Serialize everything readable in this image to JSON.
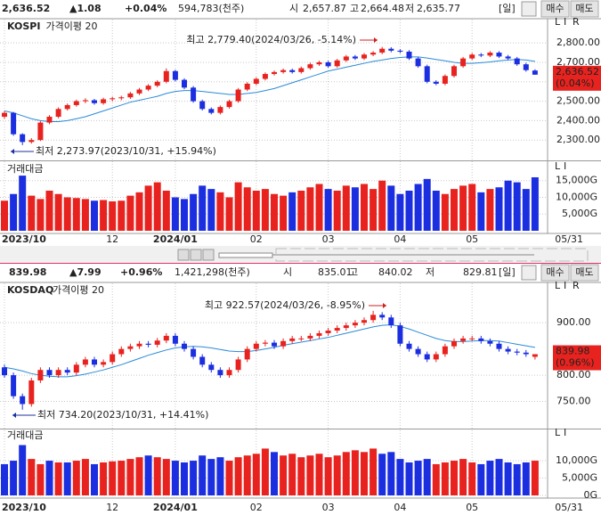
{
  "panels": [
    {
      "header": [
        {
          "text": "2,636.52",
          "color": "#222"
        },
        {
          "text": "▲1.08",
          "color": "#e0201c"
        },
        {
          "text": "+0.04%",
          "color": "#e0201c"
        },
        {
          "text": "594,783(천주)",
          "color": "#222"
        },
        {
          "text": "시",
          "color": "#222"
        },
        {
          "text": "2,657.87",
          "color": "#e0201c"
        },
        {
          "text": "고",
          "color": "#222"
        },
        {
          "text": "2,664.48",
          "color": "#e0201c"
        },
        {
          "text": "저",
          "color": "#222"
        },
        {
          "text": "2,635.77",
          "color": "#e0201c"
        },
        {
          "text": "[일]",
          "color": "#222"
        }
      ],
      "buttons": [
        "매수",
        "매도"
      ],
      "name": "KOSPI",
      "ma_label": "가격이평 20",
      "axis_buttons": [
        "L",
        "I",
        "R"
      ],
      "high_note": "최고 2,779.40(2024/03/26, -5.14%)",
      "low_note": "최저 2,273.97(2023/10/31, +15.94%)",
      "ylim": [
        2200,
        2920
      ],
      "yticks": [
        {
          "value": 2300,
          "label": "2,300.00"
        },
        {
          "value": 2400,
          "label": "2,400.00"
        },
        {
          "value": 2500,
          "label": "2,500.00"
        },
        {
          "value": 2600,
          "label": "2,600.00"
        },
        {
          "value": 2700,
          "label": "2,700.00"
        },
        {
          "value": 2800,
          "label": "2,800.00"
        }
      ],
      "up_color": "#e8221e",
      "down_color": "#1c2fe0",
      "ma_color": "#2a8ad8",
      "candles": [
        [
          2420,
          2450,
          2410,
          2440
        ],
        [
          2440,
          2445,
          2322,
          2330
        ],
        [
          2330,
          2335,
          2273.97,
          2290
        ],
        [
          2290,
          2310,
          2282,
          2300
        ],
        [
          2300,
          2398,
          2295,
          2390
        ],
        [
          2390,
          2428,
          2382,
          2420
        ],
        [
          2420,
          2468,
          2412,
          2460
        ],
        [
          2460,
          2488,
          2452,
          2480
        ],
        [
          2480,
          2508,
          2472,
          2500
        ],
        [
          2500,
          2515,
          2490,
          2505
        ],
        [
          2505,
          2512,
          2482,
          2490
        ],
        [
          2490,
          2518,
          2482,
          2510
        ],
        [
          2510,
          2523,
          2500,
          2515
        ],
        [
          2515,
          2528,
          2505,
          2520
        ],
        [
          2520,
          2548,
          2512,
          2540
        ],
        [
          2540,
          2568,
          2532,
          2560
        ],
        [
          2560,
          2588,
          2552,
          2580
        ],
        [
          2580,
          2608,
          2572,
          2600
        ],
        [
          2600,
          2669,
          2592,
          2655
        ],
        [
          2655,
          2662,
          2602,
          2610
        ],
        [
          2610,
          2618,
          2562,
          2570
        ],
        [
          2570,
          2578,
          2492,
          2500
        ],
        [
          2500,
          2508,
          2452,
          2460
        ],
        [
          2460,
          2468,
          2432,
          2440
        ],
        [
          2440,
          2478,
          2432,
          2470
        ],
        [
          2470,
          2508,
          2462,
          2500
        ],
        [
          2500,
          2568,
          2492,
          2560
        ],
        [
          2560,
          2598,
          2552,
          2590
        ],
        [
          2590,
          2623,
          2582,
          2615
        ],
        [
          2615,
          2648,
          2607,
          2640
        ],
        [
          2640,
          2658,
          2632,
          2650
        ],
        [
          2650,
          2668,
          2642,
          2660
        ],
        [
          2660,
          2668,
          2642,
          2650
        ],
        [
          2650,
          2678,
          2642,
          2670
        ],
        [
          2670,
          2698,
          2662,
          2690
        ],
        [
          2690,
          2708,
          2682,
          2700
        ],
        [
          2700,
          2708,
          2672,
          2680
        ],
        [
          2680,
          2718,
          2672,
          2710
        ],
        [
          2710,
          2738,
          2702,
          2730
        ],
        [
          2730,
          2738,
          2712,
          2720
        ],
        [
          2720,
          2748,
          2712,
          2740
        ],
        [
          2740,
          2758,
          2732,
          2750
        ],
        [
          2750,
          2779.4,
          2742,
          2770
        ],
        [
          2770,
          2778,
          2752,
          2760
        ],
        [
          2760,
          2768,
          2747,
          2755
        ],
        [
          2755,
          2763,
          2712,
          2720
        ],
        [
          2720,
          2728,
          2672,
          2680
        ],
        [
          2680,
          2688,
          2592,
          2600
        ],
        [
          2600,
          2608,
          2582,
          2590
        ],
        [
          2590,
          2638,
          2582,
          2630
        ],
        [
          2630,
          2688,
          2622,
          2680
        ],
        [
          2680,
          2728,
          2672,
          2720
        ],
        [
          2720,
          2748,
          2712,
          2740
        ],
        [
          2740,
          2748,
          2727,
          2735
        ],
        [
          2735,
          2758,
          2727,
          2750
        ],
        [
          2750,
          2758,
          2722,
          2730
        ],
        [
          2730,
          2738,
          2712,
          2720
        ],
        [
          2720,
          2728,
          2682,
          2690
        ],
        [
          2690,
          2698,
          2652,
          2660
        ],
        [
          2657.87,
          2664.48,
          2635.77,
          2636.52
        ]
      ],
      "ma": [
        2450,
        2440,
        2425,
        2410,
        2400,
        2395,
        2395,
        2400,
        2410,
        2420,
        2435,
        2450,
        2465,
        2480,
        2495,
        2505,
        2515,
        2525,
        2540,
        2550,
        2555,
        2555,
        2550,
        2545,
        2540,
        2535,
        2535,
        2540,
        2545,
        2555,
        2565,
        2580,
        2595,
        2610,
        2625,
        2640,
        2655,
        2665,
        2675,
        2685,
        2695,
        2705,
        2712,
        2720,
        2725,
        2728,
        2728,
        2722,
        2715,
        2708,
        2700,
        2695,
        2695,
        2698,
        2702,
        2708,
        2712,
        2715,
        2712,
        2705
      ],
      "last_label": "2,636.52",
      "last_change": "(0.04%)",
      "volume": {
        "label": "거래대금",
        "axis_buttons": [
          "L",
          "I"
        ],
        "ylim": [
          0,
          20260
        ],
        "yticks": [
          {
            "value": 5000,
            "label": "5,000G"
          },
          {
            "value": 10000,
            "label": "10,000G"
          },
          {
            "value": 15000,
            "label": "15,000G"
          }
        ],
        "values": [
          9000,
          11000,
          16500,
          10500,
          9500,
          12000,
          11000,
          10000,
          9800,
          9500,
          9000,
          9200,
          8800,
          9000,
          10500,
          11500,
          13500,
          14500,
          12000,
          10000,
          9500,
          11000,
          13500,
          12500,
          11500,
          10000,
          14500,
          13000,
          12000,
          12500,
          11000,
          10500,
          11500,
          12000,
          13000,
          14000,
          12500,
          12000,
          13500,
          13000,
          14000,
          12500,
          15000,
          13500,
          11000,
          12000,
          14000,
          15500,
          12000,
          11000,
          12500,
          13500,
          14000,
          11500,
          12500,
          13000,
          15000,
          14500,
          12500,
          16000
        ]
      },
      "xticks": [
        {
          "index": 0,
          "label": "2023/10"
        },
        {
          "index": 12,
          "label": "12"
        },
        {
          "index": 19,
          "label": "2024/01"
        },
        {
          "index": 28,
          "label": "02"
        },
        {
          "index": 36,
          "label": "03"
        },
        {
          "index": 44,
          "label": "04"
        },
        {
          "index": 52,
          "label": "05"
        }
      ],
      "end_date": "05/31"
    },
    {
      "header": [
        {
          "text": "839.98",
          "color": "#e0201c"
        },
        {
          "text": "▲7.99",
          "color": "#e0201c"
        },
        {
          "text": "+0.96%",
          "color": "#e0201c"
        },
        {
          "text": "1,421,298(천주)",
          "color": "#222"
        },
        {
          "text": "시",
          "color": "#222"
        },
        {
          "text": "835.01",
          "color": "#e0201c"
        },
        {
          "text": "고",
          "color": "#222"
        },
        {
          "text": "840.02",
          "color": "#e0201c"
        },
        {
          "text": "저",
          "color": "#222"
        },
        {
          "text": "829.81",
          "color": "#e0201c"
        },
        {
          "text": "[일]",
          "color": "#222"
        }
      ],
      "buttons": [
        "매수",
        "매도"
      ],
      "name": "KOSDAQ",
      "ma_label": "가격이평 20",
      "axis_buttons": [
        "L",
        "I",
        "R"
      ],
      "high_note": "최고 922.57(2024/03/26, -8.95%)",
      "low_note": "최저 734.20(2023/10/31, +14.41%)",
      "ylim": [
        700,
        975
      ],
      "yticks": [
        {
          "value": 750,
          "label": "750.00"
        },
        {
          "value": 800,
          "label": "800.00"
        },
        {
          "value": 900,
          "label": "900.00"
        }
      ],
      "up_color": "#e8221e",
      "down_color": "#1c2fe0",
      "ma_color": "#2a8ad8",
      "candles": [
        [
          815,
          820,
          795,
          800
        ],
        [
          800,
          805,
          755,
          760
        ],
        [
          760,
          765,
          734.2,
          745
        ],
        [
          745,
          795,
          740,
          790
        ],
        [
          790,
          815,
          785,
          810
        ],
        [
          810,
          815,
          795,
          800
        ],
        [
          800,
          815,
          795,
          810
        ],
        [
          810,
          815,
          800,
          805
        ],
        [
          805,
          825,
          800,
          820
        ],
        [
          820,
          835,
          815,
          830
        ],
        [
          830,
          835,
          815,
          820
        ],
        [
          820,
          830,
          815,
          825
        ],
        [
          825,
          845,
          820,
          840
        ],
        [
          840,
          855,
          835,
          850
        ],
        [
          850,
          860,
          845,
          855
        ],
        [
          855,
          865,
          850,
          860
        ],
        [
          860,
          865,
          853,
          858
        ],
        [
          858,
          871,
          853,
          866
        ],
        [
          866,
          880,
          861,
          875
        ],
        [
          875,
          880,
          855,
          860
        ],
        [
          860,
          865,
          845,
          850
        ],
        [
          850,
          855,
          830,
          835
        ],
        [
          835,
          840,
          815,
          820
        ],
        [
          820,
          825,
          805,
          810
        ],
        [
          810,
          815,
          795,
          800
        ],
        [
          800,
          815,
          795,
          810
        ],
        [
          810,
          835,
          805,
          830
        ],
        [
          830,
          855,
          825,
          850
        ],
        [
          850,
          865,
          845,
          860
        ],
        [
          860,
          867,
          855,
          862
        ],
        [
          862,
          867,
          850,
          855
        ],
        [
          855,
          870,
          850,
          865
        ],
        [
          865,
          875,
          860,
          870
        ],
        [
          870,
          875,
          865,
          870
        ],
        [
          870,
          880,
          865,
          875
        ],
        [
          875,
          885,
          870,
          880
        ],
        [
          880,
          890,
          875,
          885
        ],
        [
          885,
          895,
          880,
          890
        ],
        [
          890,
          900,
          885,
          895
        ],
        [
          895,
          905,
          890,
          900
        ],
        [
          900,
          910,
          895,
          905
        ],
        [
          905,
          922.57,
          900,
          915
        ],
        [
          915,
          920,
          905,
          910
        ],
        [
          910,
          915,
          890,
          895
        ],
        [
          895,
          900,
          855,
          860
        ],
        [
          860,
          865,
          845,
          850
        ],
        [
          850,
          855,
          835,
          840
        ],
        [
          840,
          845,
          825,
          830
        ],
        [
          830,
          845,
          825,
          840
        ],
        [
          840,
          860,
          835,
          855
        ],
        [
          855,
          870,
          850,
          865
        ],
        [
          865,
          875,
          860,
          870
        ],
        [
          870,
          875,
          865,
          870
        ],
        [
          870,
          875,
          860,
          865
        ],
        [
          865,
          870,
          855,
          860
        ],
        [
          860,
          865,
          845,
          850
        ],
        [
          850,
          855,
          840,
          845
        ],
        [
          845,
          850,
          838,
          843
        ],
        [
          843,
          848,
          835,
          840
        ],
        [
          835.01,
          840.02,
          829.81,
          839.98
        ]
      ],
      "ma": [
        815,
        812,
        808,
        803,
        800,
        798,
        797,
        797,
        799,
        802,
        806,
        810,
        815,
        820,
        826,
        832,
        838,
        843,
        848,
        852,
        854,
        855,
        854,
        852,
        849,
        846,
        845,
        845,
        847,
        850,
        853,
        857,
        860,
        863,
        866,
        869,
        872,
        876,
        880,
        884,
        888,
        892,
        895,
        896,
        893,
        888,
        882,
        876,
        870,
        866,
        864,
        864,
        865,
        866,
        866,
        865,
        862,
        859,
        856,
        853
      ],
      "last_label": "839.98",
      "last_change": "(0.96%)",
      "volume": {
        "label": "거래대금",
        "axis_buttons": [
          "L",
          "I"
        ],
        "ylim": [
          0,
          19000
        ],
        "yticks": [
          {
            "value": 0,
            "label": "0G"
          },
          {
            "value": 5000,
            "label": "5,000G"
          },
          {
            "value": 10000,
            "label": "10,000G"
          }
        ],
        "values": [
          9000,
          10000,
          14500,
          10500,
          9000,
          10000,
          9500,
          9500,
          10000,
          10500,
          9000,
          9500,
          9800,
          10000,
          10500,
          11000,
          11500,
          11000,
          10500,
          10000,
          9500,
          10000,
          11500,
          10500,
          11000,
          10000,
          11000,
          11500,
          12000,
          13500,
          12500,
          11500,
          12000,
          11000,
          11500,
          12000,
          11000,
          11500,
          12500,
          13000,
          12500,
          13500,
          12000,
          12500,
          10500,
          9500,
          10000,
          10500,
          9000,
          9500,
          10000,
          10500,
          9500,
          9000,
          10000,
          10500,
          9500,
          9000,
          9500,
          10000
        ]
      },
      "xticks": [
        {
          "index": 0,
          "label": "2023/10"
        },
        {
          "index": 12,
          "label": "12"
        },
        {
          "index": 19,
          "label": "2024/01"
        },
        {
          "index": 28,
          "label": "02"
        },
        {
          "index": 36,
          "label": "03"
        },
        {
          "index": 44,
          "label": "04"
        },
        {
          "index": 52,
          "label": "05"
        }
      ],
      "end_date": "05/31"
    }
  ]
}
